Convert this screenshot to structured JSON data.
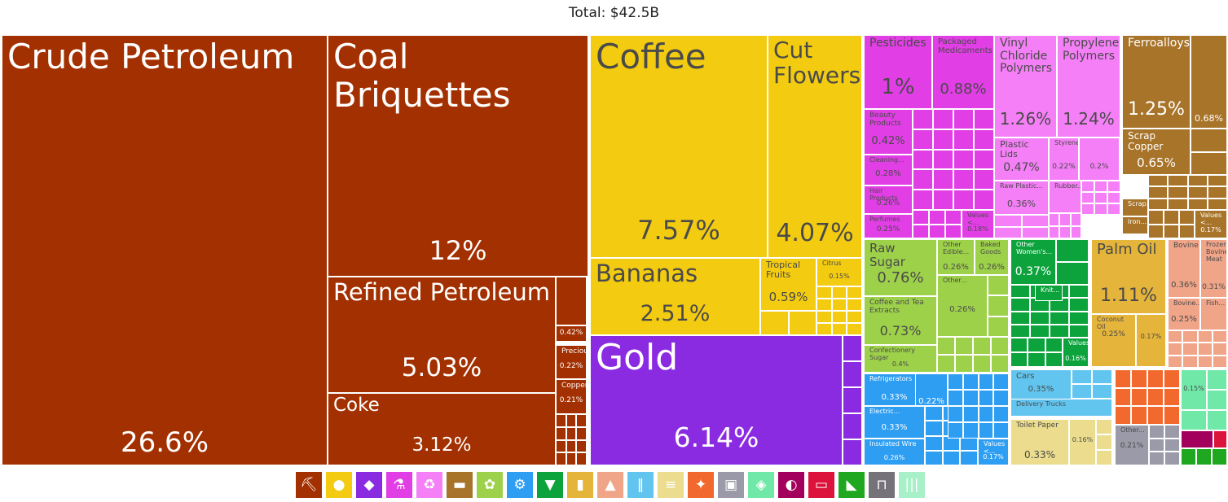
{
  "chart_data": {
    "type": "treemap",
    "title": "Total: $42.5B",
    "items": [
      {
        "name": "Crude Petroleum",
        "value": "26.6%",
        "category": "minerals"
      },
      {
        "name": "Coal Briquettes",
        "value": "12%",
        "category": "minerals"
      },
      {
        "name": "Refined Petroleum",
        "value": "5.03%",
        "category": "minerals"
      },
      {
        "name": "Coke",
        "value": "3.12%",
        "category": "minerals"
      },
      {
        "name": "",
        "value": "0.42%",
        "category": "minerals"
      },
      {
        "name": "Precious...",
        "value": "0.22%",
        "category": "minerals"
      },
      {
        "name": "Copper...",
        "value": "0.21%",
        "category": "minerals"
      },
      {
        "name": "Coffee",
        "value": "7.57%",
        "category": "vegetable"
      },
      {
        "name": "Cut Flowers",
        "value": "4.07%",
        "category": "vegetable"
      },
      {
        "name": "Bananas",
        "value": "2.51%",
        "category": "vegetable"
      },
      {
        "name": "Tropical Fruits",
        "value": "0.59%",
        "category": "vegetable"
      },
      {
        "name": "Citrus",
        "value": "0.15%",
        "category": "vegetable"
      },
      {
        "name": "Gold",
        "value": "6.14%",
        "category": "precious"
      },
      {
        "name": "Pesticides",
        "value": "1%",
        "category": "chemicals"
      },
      {
        "name": "Packaged Medicaments",
        "value": "0.88%",
        "category": "chemicals"
      },
      {
        "name": "Beauty Products",
        "value": "0.42%",
        "category": "chemicals"
      },
      {
        "name": "Cleaning...",
        "value": "0.28%",
        "category": "chemicals"
      },
      {
        "name": "Hair Products",
        "value": "0.26%",
        "category": "chemicals"
      },
      {
        "name": "Perfumes",
        "value": "0.25%",
        "category": "chemicals"
      },
      {
        "name": "Values <...",
        "value": "0.18%",
        "category": "chemicals"
      },
      {
        "name": "Vinyl Chloride Polymers",
        "value": "1.26%",
        "category": "plastics"
      },
      {
        "name": "Propylene Polymers",
        "value": "1.24%",
        "category": "plastics"
      },
      {
        "name": "Plastic Lids",
        "value": "0.47%",
        "category": "plastics"
      },
      {
        "name": "Styrene...",
        "value": "0.22%",
        "category": "plastics"
      },
      {
        "name": "",
        "value": "0.2%",
        "category": "plastics"
      },
      {
        "name": "Raw Plastic...",
        "value": "0.36%",
        "category": "plastics"
      },
      {
        "name": "Rubber...",
        "value": "",
        "category": "plastics"
      },
      {
        "name": "Ferroalloys",
        "value": "1.25%",
        "category": "metals"
      },
      {
        "name": "",
        "value": "0.68%",
        "category": "metals"
      },
      {
        "name": "Scrap Copper",
        "value": "0.65%",
        "category": "metals"
      },
      {
        "name": "Scrap...",
        "value": "",
        "category": "metals"
      },
      {
        "name": "Iron...",
        "value": "",
        "category": "metals"
      },
      {
        "name": "Values <...",
        "value": "0.17%",
        "category": "metals"
      },
      {
        "name": "Raw Sugar",
        "value": "0.76%",
        "category": "foodstuffs"
      },
      {
        "name": "Other Edible...",
        "value": "0.26%",
        "category": "foodstuffs"
      },
      {
        "name": "Baked Goods",
        "value": "0.26%",
        "category": "foodstuffs"
      },
      {
        "name": "Coffee and Tea Extracts",
        "value": "0.73%",
        "category": "foodstuffs"
      },
      {
        "name": "Other...",
        "value": "0.26%",
        "category": "foodstuffs"
      },
      {
        "name": "Confectionery Sugar",
        "value": "0.4%",
        "category": "foodstuffs"
      },
      {
        "name": "Other Women's...",
        "value": "0.37%",
        "category": "textiles"
      },
      {
        "name": "Knit...",
        "value": "",
        "category": "textiles"
      },
      {
        "name": "Values...",
        "value": "0.16%",
        "category": "textiles"
      },
      {
        "name": "Palm Oil",
        "value": "1.11%",
        "category": "fats"
      },
      {
        "name": "Coconut Oil",
        "value": "0.25%",
        "category": "fats"
      },
      {
        "name": "",
        "value": "0.17%",
        "category": "fats"
      },
      {
        "name": "Bovine",
        "value": "0.36%",
        "category": "animal"
      },
      {
        "name": "Frozen Bovine Meat",
        "value": "0.31%",
        "category": "animal"
      },
      {
        "name": "Bovine...",
        "value": "0.25%",
        "category": "animal"
      },
      {
        "name": "Fish...",
        "value": "",
        "category": "animal"
      },
      {
        "name": "Refrigerators",
        "value": "0.33%",
        "category": "machines"
      },
      {
        "name": "Electric...",
        "value": "0.33%",
        "category": "machines"
      },
      {
        "name": "Insulated Wire",
        "value": "0.26%",
        "category": "machines"
      },
      {
        "name": "",
        "value": "0.22%",
        "category": "machines"
      },
      {
        "name": "Values <...",
        "value": "0.17%",
        "category": "machines"
      },
      {
        "name": "Cars",
        "value": "0.35%",
        "category": "transport"
      },
      {
        "name": "Delivery Trucks",
        "value": "",
        "category": "transport"
      },
      {
        "name": "Toilet Paper",
        "value": "0.33%",
        "category": "paper"
      },
      {
        "name": "",
        "value": "0.16%",
        "category": "paper"
      },
      {
        "name": "",
        "value": "0.15%",
        "category": "hides"
      },
      {
        "name": "Other...",
        "value": "0.21%",
        "category": "misc"
      }
    ],
    "legend": [
      "minerals",
      "vegetable",
      "precious",
      "chemicals",
      "plastics",
      "metals",
      "foodstuffs",
      "machines",
      "textiles",
      "fats",
      "animal",
      "transport",
      "paper",
      "stone",
      "misc",
      "hides",
      "instruments",
      "weapons",
      "footwear",
      "arts",
      "other"
    ],
    "colors": {
      "minerals": "#a33000",
      "vegetable": "#f3cb10",
      "precious": "#8a2be2",
      "chemicals": "#e23ee6",
      "plastics": "#f57ff7",
      "metals": "#a8742a",
      "foodstuffs": "#9ed14a",
      "machines": "#2e9ef3",
      "textiles": "#0ca33c",
      "fats": "#e5b43a",
      "animal": "#f0a589",
      "transport": "#62c5ef",
      "paper": "#ebdd8d",
      "stone": "#f2692e",
      "misc": "#9a9aa8",
      "hides": "#70e8a8",
      "instruments": "#a3005d",
      "weapons": "#dc143c",
      "footwear": "#1fa81f",
      "arts": "#76727a",
      "other": "#a8f0c8"
    },
    "legend_icons": {
      "minerals": "pickaxe-icon",
      "vegetable": "orange-fruit-icon",
      "precious": "gem-icon",
      "chemicals": "flask-icon",
      "plastics": "recycle-icon",
      "metals": "anvil-icon",
      "foodstuffs": "wheat-icon",
      "machines": "gear-icon",
      "textiles": "shirt-icon",
      "fats": "oil-bottle-icon",
      "animal": "cow-icon",
      "transport": "road-icon",
      "paper": "paper-scroll-icon",
      "stone": "stone-icon",
      "misc": "box-icon",
      "hides": "hide-icon",
      "instruments": "gauge-icon",
      "weapons": "rifle-icon",
      "footwear": "shoe-icon",
      "arts": "easel-icon",
      "other": "misc-bars-icon"
    }
  }
}
